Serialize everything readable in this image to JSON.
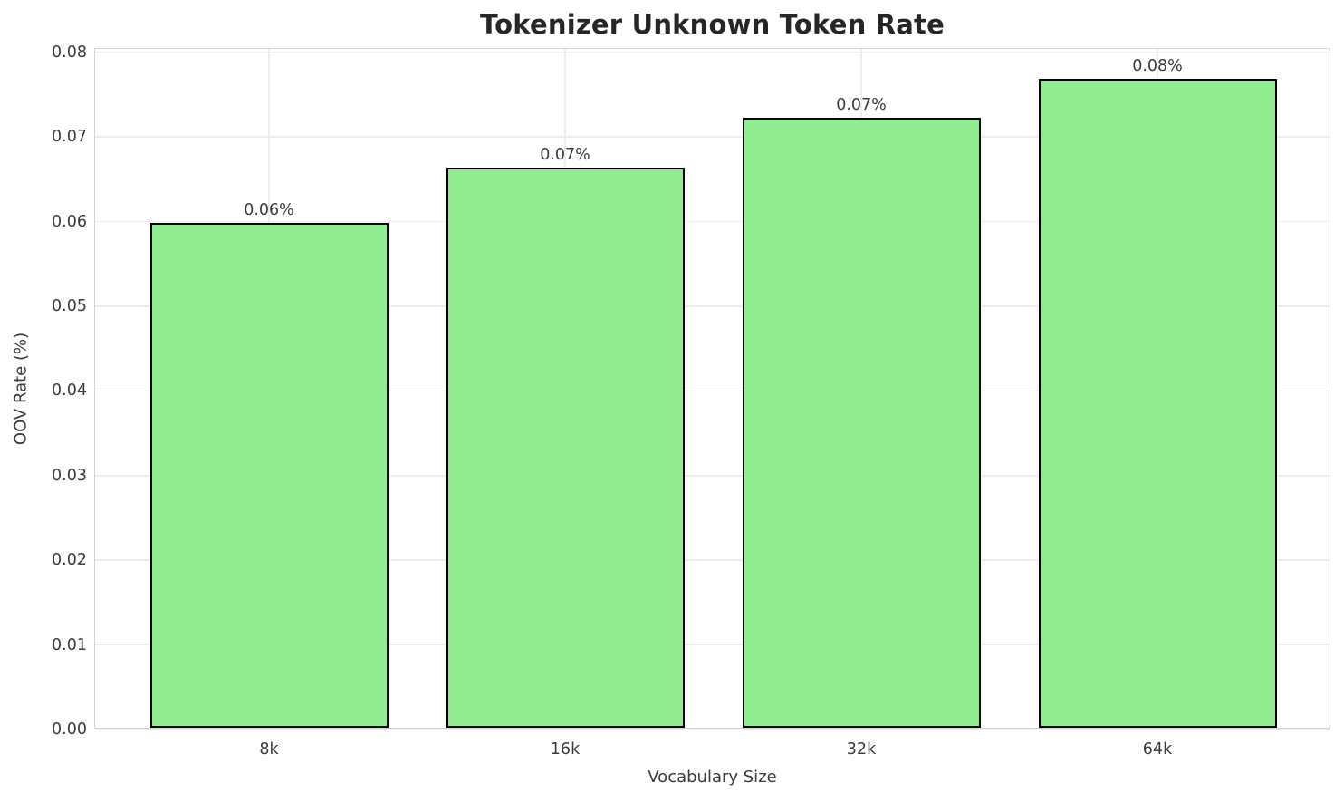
{
  "chart_data": {
    "type": "bar",
    "title": "Tokenizer Unknown Token Rate",
    "xlabel": "Vocabulary Size",
    "ylabel": "OOV Rate (%)",
    "categories": [
      "8k",
      "16k",
      "32k",
      "64k"
    ],
    "values": [
      0.0596,
      0.0662,
      0.072,
      0.0767
    ],
    "bar_value_labels": [
      "0.06%",
      "0.07%",
      "0.07%",
      "0.08%"
    ],
    "y_ticks": [
      "0.00",
      "0.01",
      "0.02",
      "0.03",
      "0.04",
      "0.05",
      "0.06",
      "0.07",
      "0.08"
    ],
    "ylim": [
      0,
      0.08
    ],
    "grid": true,
    "legend": "none",
    "colors": {
      "bar_fill": "#90EE90",
      "bar_edge": "#000000",
      "gridline": "#ECECEC",
      "spine": "#D3D3D3",
      "tick_text": "#3B3B3B",
      "title_text": "#262626",
      "background": "#FFFFFF"
    }
  }
}
